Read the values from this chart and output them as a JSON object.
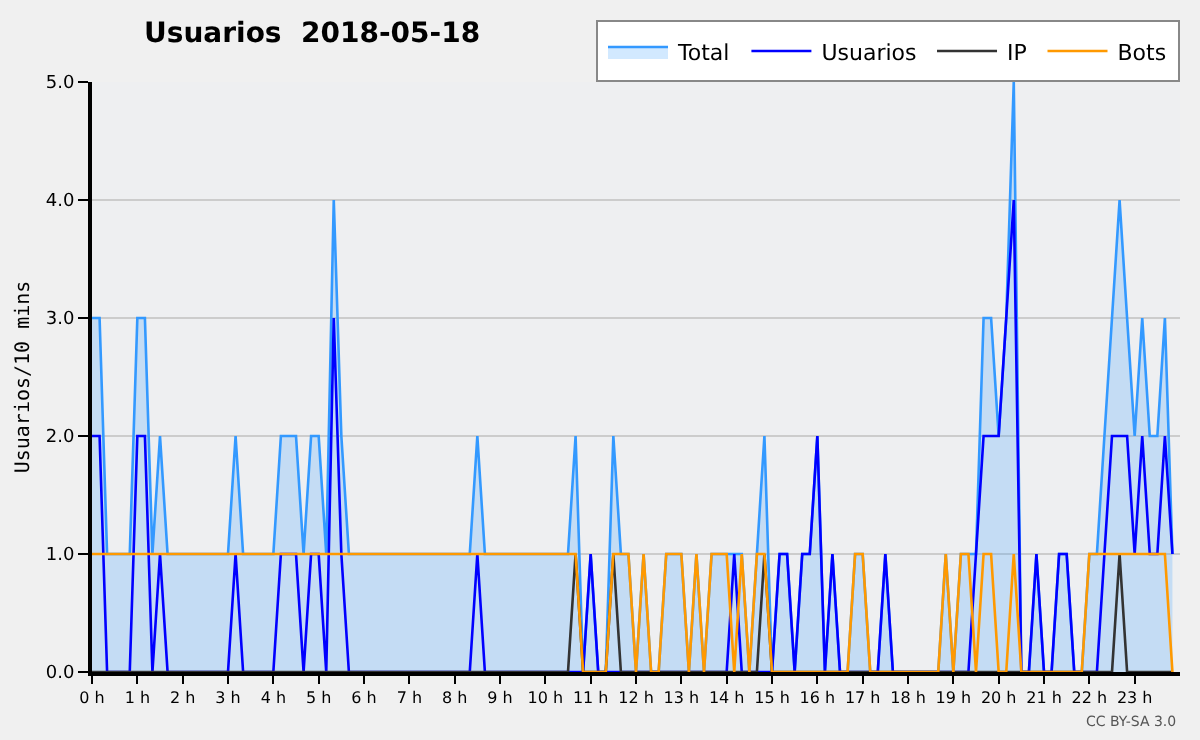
{
  "chart_data": {
    "type": "line",
    "title": "Usuarios  2018-05-18",
    "ylabel": "Usuarios/10 mins",
    "x": [
      0,
      0.167,
      0.333,
      0.5,
      0.667,
      0.833,
      1,
      1.167,
      1.333,
      1.5,
      1.667,
      1.833,
      2,
      2.167,
      2.333,
      2.5,
      2.667,
      2.833,
      3,
      3.167,
      3.333,
      3.5,
      3.667,
      3.833,
      4,
      4.167,
      4.333,
      4.5,
      4.667,
      4.833,
      5,
      5.167,
      5.333,
      5.5,
      5.667,
      5.833,
      6,
      6.167,
      6.333,
      6.5,
      6.667,
      6.833,
      7,
      7.167,
      7.333,
      7.5,
      7.667,
      7.833,
      8,
      8.167,
      8.333,
      8.5,
      8.667,
      8.833,
      9,
      9.167,
      9.333,
      9.5,
      9.667,
      9.833,
      10,
      10.167,
      10.333,
      10.5,
      10.667,
      10.833,
      11,
      11.167,
      11.333,
      11.5,
      11.667,
      11.833,
      12,
      12.167,
      12.333,
      12.5,
      12.667,
      12.833,
      13,
      13.167,
      13.333,
      13.5,
      13.667,
      13.833,
      14,
      14.167,
      14.333,
      14.5,
      14.667,
      14.833,
      15,
      15.167,
      15.333,
      15.5,
      15.667,
      15.833,
      16,
      16.167,
      16.333,
      16.5,
      16.667,
      16.833,
      17,
      17.167,
      17.333,
      17.5,
      17.667,
      17.833,
      18,
      18.167,
      18.333,
      18.5,
      18.667,
      18.833,
      19,
      19.167,
      19.333,
      19.5,
      19.667,
      19.833,
      20,
      20.167,
      20.333,
      20.5,
      20.667,
      20.833,
      21,
      21.167,
      21.333,
      21.5,
      21.667,
      21.833,
      22,
      22.167,
      22.333,
      22.5,
      22.667,
      22.833,
      23,
      23.167,
      23.333,
      23.5,
      23.667,
      23.833
    ],
    "series": [
      {
        "name": "Total",
        "type": "area",
        "color": "#3399ff",
        "values": [
          3,
          3,
          1,
          1,
          1,
          1,
          3,
          3,
          1,
          2,
          1,
          1,
          1,
          1,
          1,
          1,
          1,
          1,
          1,
          2,
          1,
          1,
          1,
          1,
          1,
          2,
          2,
          2,
          1,
          2,
          2,
          1,
          4,
          2,
          1,
          1,
          1,
          1,
          1,
          1,
          1,
          1,
          1,
          1,
          1,
          1,
          1,
          1,
          1,
          1,
          1,
          2,
          1,
          1,
          1,
          1,
          1,
          1,
          1,
          1,
          1,
          1,
          1,
          1,
          2,
          0,
          1,
          0,
          0,
          2,
          1,
          1,
          0,
          1,
          0,
          0,
          1,
          1,
          1,
          0,
          1,
          0,
          1,
          1,
          1,
          1,
          1,
          0,
          1,
          2,
          0,
          1,
          1,
          0,
          1,
          1,
          2,
          0,
          1,
          0,
          0,
          1,
          1,
          0,
          0,
          1,
          0,
          0,
          0,
          0,
          0,
          0,
          0,
          1,
          0,
          1,
          1,
          1,
          3,
          3,
          2,
          3,
          5,
          0,
          0,
          1,
          0,
          0,
          1,
          1,
          0,
          0,
          1,
          1,
          2,
          3,
          4,
          3,
          2,
          3,
          2,
          2,
          3,
          1
        ]
      },
      {
        "name": "Usuarios",
        "color": "#0000ff",
        "values": [
          2,
          2,
          0,
          0,
          0,
          0,
          2,
          2,
          0,
          1,
          0,
          0,
          0,
          0,
          0,
          0,
          0,
          0,
          0,
          1,
          0,
          0,
          0,
          0,
          0,
          1,
          1,
          1,
          0,
          1,
          1,
          0,
          3,
          1,
          0,
          0,
          0,
          0,
          0,
          0,
          0,
          0,
          0,
          0,
          0,
          0,
          0,
          0,
          0,
          0,
          0,
          1,
          0,
          0,
          0,
          0,
          0,
          0,
          0,
          0,
          0,
          0,
          0,
          0,
          0,
          0,
          1,
          0,
          0,
          0,
          0,
          0,
          0,
          0,
          0,
          0,
          0,
          0,
          0,
          0,
          0,
          0,
          0,
          0,
          0,
          1,
          0,
          0,
          0,
          0,
          0,
          1,
          1,
          0,
          1,
          1,
          2,
          0,
          1,
          0,
          0,
          0,
          0,
          0,
          0,
          1,
          0,
          0,
          0,
          0,
          0,
          0,
          0,
          0,
          0,
          0,
          0,
          1,
          2,
          2,
          2,
          3,
          4,
          0,
          0,
          1,
          0,
          0,
          1,
          1,
          0,
          0,
          0,
          0,
          1,
          2,
          2,
          2,
          1,
          2,
          1,
          1,
          2,
          1
        ]
      },
      {
        "name": "IP",
        "color": "#333333",
        "values": [
          0,
          0,
          0,
          0,
          0,
          0,
          0,
          0,
          0,
          0,
          0,
          0,
          0,
          0,
          0,
          0,
          0,
          0,
          0,
          0,
          0,
          0,
          0,
          0,
          0,
          0,
          0,
          0,
          0,
          0,
          0,
          0,
          0,
          0,
          0,
          0,
          0,
          0,
          0,
          0,
          0,
          0,
          0,
          0,
          0,
          0,
          0,
          0,
          0,
          0,
          0,
          0,
          0,
          0,
          0,
          0,
          0,
          0,
          0,
          0,
          0,
          0,
          0,
          0,
          1,
          0,
          0,
          0,
          0,
          1,
          0,
          0,
          0,
          0,
          0,
          0,
          0,
          0,
          0,
          0,
          0,
          0,
          0,
          0,
          0,
          0,
          0,
          0,
          0,
          1,
          0,
          0,
          0,
          0,
          0,
          0,
          0,
          0,
          0,
          0,
          0,
          0,
          0,
          0,
          0,
          0,
          0,
          0,
          0,
          0,
          0,
          0,
          0,
          0,
          0,
          0,
          0,
          0,
          0,
          0,
          0,
          0,
          0,
          0,
          0,
          0,
          0,
          0,
          0,
          0,
          0,
          0,
          0,
          0,
          0,
          0,
          1,
          0,
          0,
          0,
          0,
          0,
          0,
          0
        ]
      },
      {
        "name": "Bots",
        "color": "#ff9900",
        "values": [
          1,
          1,
          1,
          1,
          1,
          1,
          1,
          1,
          1,
          1,
          1,
          1,
          1,
          1,
          1,
          1,
          1,
          1,
          1,
          1,
          1,
          1,
          1,
          1,
          1,
          1,
          1,
          1,
          1,
          1,
          1,
          1,
          1,
          1,
          1,
          1,
          1,
          1,
          1,
          1,
          1,
          1,
          1,
          1,
          1,
          1,
          1,
          1,
          1,
          1,
          1,
          1,
          1,
          1,
          1,
          1,
          1,
          1,
          1,
          1,
          1,
          1,
          1,
          1,
          1,
          0,
          0,
          0,
          0,
          1,
          1,
          1,
          0,
          1,
          0,
          0,
          1,
          1,
          1,
          0,
          1,
          0,
          1,
          1,
          1,
          0,
          1,
          0,
          1,
          1,
          0,
          0,
          0,
          0,
          0,
          0,
          0,
          0,
          0,
          0,
          0,
          1,
          1,
          0,
          0,
          0,
          0,
          0,
          0,
          0,
          0,
          0,
          0,
          1,
          0,
          1,
          1,
          0,
          1,
          1,
          0,
          0,
          1,
          0,
          0,
          0,
          0,
          0,
          0,
          0,
          0,
          0,
          1,
          1,
          1,
          1,
          1,
          1,
          1,
          1,
          1,
          1,
          1,
          0
        ]
      }
    ],
    "xlim": [
      0,
      24
    ],
    "xticks": [
      {
        "value": 0,
        "label": "0 h"
      },
      {
        "value": 1,
        "label": "1 h"
      },
      {
        "value": 2,
        "label": "2 h"
      },
      {
        "value": 3,
        "label": "3 h"
      },
      {
        "value": 4,
        "label": "4 h"
      },
      {
        "value": 5,
        "label": "5 h"
      },
      {
        "value": 6,
        "label": "6 h"
      },
      {
        "value": 7,
        "label": "7 h"
      },
      {
        "value": 8,
        "label": "8 h"
      },
      {
        "value": 9,
        "label": "9 h"
      },
      {
        "value": 10,
        "label": "10 h"
      },
      {
        "value": 11,
        "label": "11 h"
      },
      {
        "value": 12,
        "label": "12 h"
      },
      {
        "value": 13,
        "label": "13 h"
      },
      {
        "value": 14,
        "label": "14 h"
      },
      {
        "value": 15,
        "label": "15 h"
      },
      {
        "value": 16,
        "label": "16 h"
      },
      {
        "value": 17,
        "label": "17 h"
      },
      {
        "value": 18,
        "label": "18 h"
      },
      {
        "value": 19,
        "label": "19 h"
      },
      {
        "value": 20,
        "label": "20 h"
      },
      {
        "value": 21,
        "label": "21 h"
      },
      {
        "value": 22,
        "label": "22 h"
      },
      {
        "value": 23,
        "label": "23 h"
      }
    ],
    "ylim": [
      0,
      5
    ],
    "yticks": [
      {
        "value": 0,
        "label": "0.0"
      },
      {
        "value": 1,
        "label": "1.0"
      },
      {
        "value": 2,
        "label": "2.0"
      },
      {
        "value": 3,
        "label": "3.0"
      },
      {
        "value": 4,
        "label": "4.0"
      },
      {
        "value": 5,
        "label": "5.0"
      }
    ],
    "grid": "y",
    "legend": "top right",
    "annotations": [
      "CC BY-SA 3.0"
    ]
  }
}
